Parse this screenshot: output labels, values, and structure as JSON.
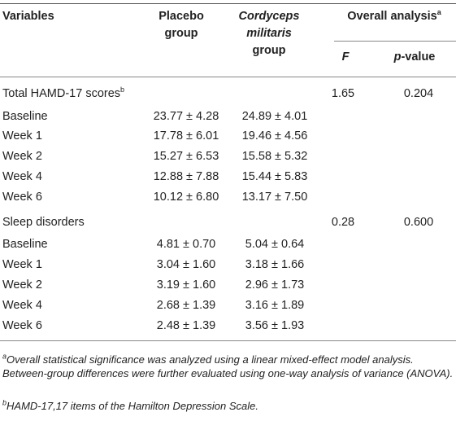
{
  "header": {
    "variables": "Variables",
    "placebo_line1": "Placebo",
    "placebo_line2": "group",
    "cm_line1": "Cordyceps",
    "cm_line2": "militaris",
    "cm_line3": "group",
    "overall": "Overall analysis",
    "overall_sup": "a",
    "f": "F",
    "p_italic": "p",
    "p_rest": "-value"
  },
  "sections": [
    {
      "title": "Total HAMD-17 scores",
      "title_sup": "b",
      "f": "1.65",
      "p": "0.204",
      "rows": [
        {
          "label": "Baseline",
          "placebo": "23.77 ± 4.28",
          "cm": "24.89 ± 4.01"
        },
        {
          "label": "Week 1",
          "placebo": "17.78 ± 6.01",
          "cm": "19.46 ± 4.56"
        },
        {
          "label": "Week 2",
          "placebo": "15.27 ± 6.53",
          "cm": "15.58 ± 5.32"
        },
        {
          "label": "Week 4",
          "placebo": "12.88 ± 7.88",
          "cm": "15.44 ± 5.83"
        },
        {
          "label": "Week 6",
          "placebo": "10.12 ± 6.80",
          "cm": "13.17 ± 7.50"
        }
      ]
    },
    {
      "title": "Sleep disorders",
      "title_sup": "",
      "f": "0.28",
      "p": "0.600",
      "rows": [
        {
          "label": "Baseline",
          "placebo": "4.81 ± 0.70",
          "cm": "5.04 ± 0.64"
        },
        {
          "label": "Week 1",
          "placebo": "3.04 ± 1.60",
          "cm": "3.18 ± 1.66"
        },
        {
          "label": "Week 2",
          "placebo": "3.19 ± 1.60",
          "cm": "2.96 ± 1.73"
        },
        {
          "label": "Week 4",
          "placebo": "2.68 ± 1.39",
          "cm": "3.16 ± 1.89"
        },
        {
          "label": "Week 6",
          "placebo": "2.48 ± 1.39",
          "cm": "3.56 ± 1.93"
        }
      ]
    }
  ],
  "footnotes": {
    "a_mark": "a",
    "a_text": "Overall statistical significance was analyzed using a linear mixed-effect model analysis. Between-group differences were further evaluated using one-way analysis of variance (ANOVA).",
    "b_mark": "b",
    "b_text": "HAMD-17,17 items of the Hamilton Depression Scale."
  }
}
